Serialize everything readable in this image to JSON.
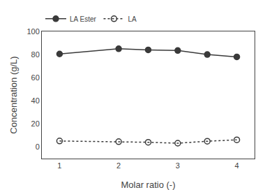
{
  "chart_data": {
    "type": "line",
    "x": [
      1,
      2,
      2.5,
      3,
      3.5,
      4
    ],
    "series": [
      {
        "name": "LA Ester",
        "color": "#3a3a3a",
        "values": [
          80.5,
          85.0,
          84.0,
          83.5,
          80.0,
          78.0
        ],
        "marker": "circle",
        "line_style": "solid"
      },
      {
        "name": "LA",
        "color": "#3a3a3a",
        "values": [
          5.2,
          4.6,
          4.1,
          3.3,
          5.0,
          6.2
        ],
        "marker": "circle-open",
        "line_style": "dotted"
      }
    ],
    "xlabel": "Molar ratio (-)",
    "ylabel": "Concentration (g/L)",
    "xlim": [
      0.7,
      4.3
    ],
    "ylim": [
      -10,
      100
    ],
    "xticks": [
      1,
      2,
      3,
      4
    ],
    "yticks": [
      0,
      20,
      40,
      60,
      80,
      100
    ],
    "grid": false,
    "legend": "upper left"
  }
}
